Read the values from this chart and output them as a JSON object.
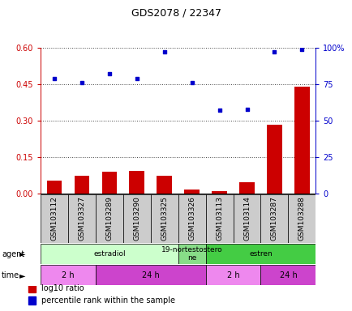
{
  "title": "GDS2078 / 22347",
  "samples": [
    "GSM103112",
    "GSM103327",
    "GSM103289",
    "GSM103290",
    "GSM103325",
    "GSM103326",
    "GSM103113",
    "GSM103114",
    "GSM103287",
    "GSM103288"
  ],
  "log10_ratio": [
    0.055,
    0.075,
    0.09,
    0.095,
    0.075,
    0.018,
    0.012,
    0.048,
    0.285,
    0.44
  ],
  "percentile_rank": [
    79,
    76,
    82,
    79,
    97,
    76,
    57,
    58,
    97,
    99
  ],
  "left_ylim": [
    0,
    0.6
  ],
  "right_ylim": [
    0,
    100
  ],
  "left_yticks": [
    0,
    0.15,
    0.3,
    0.45,
    0.6
  ],
  "right_yticks": [
    0,
    25,
    50,
    75,
    100
  ],
  "right_yticklabels": [
    "0",
    "25",
    "50",
    "75",
    "100%"
  ],
  "bar_color": "#cc0000",
  "scatter_color": "#0000cc",
  "agent_labels": [
    {
      "text": "estradiol",
      "start": 0,
      "end": 5,
      "color": "#ccffcc"
    },
    {
      "text": "19-nortestostero\nne",
      "start": 5,
      "end": 6,
      "color": "#88dd88"
    },
    {
      "text": "estren",
      "start": 6,
      "end": 10,
      "color": "#44cc44"
    }
  ],
  "time_labels": [
    {
      "text": "2 h",
      "start": 0,
      "end": 2,
      "color": "#ee88ee"
    },
    {
      "text": "24 h",
      "start": 2,
      "end": 6,
      "color": "#cc44cc"
    },
    {
      "text": "2 h",
      "start": 6,
      "end": 8,
      "color": "#ee88ee"
    },
    {
      "text": "24 h",
      "start": 8,
      "end": 10,
      "color": "#cc44cc"
    }
  ],
  "legend_items": [
    {
      "label": "log10 ratio",
      "color": "#cc0000"
    },
    {
      "label": "percentile rank within the sample",
      "color": "#0000cc"
    }
  ],
  "dotted_line_color": "#444444",
  "tick_label_fontsize": 7,
  "sample_label_fontsize": 6.5,
  "label_box_color": "#cccccc",
  "spine_color": "#888888"
}
